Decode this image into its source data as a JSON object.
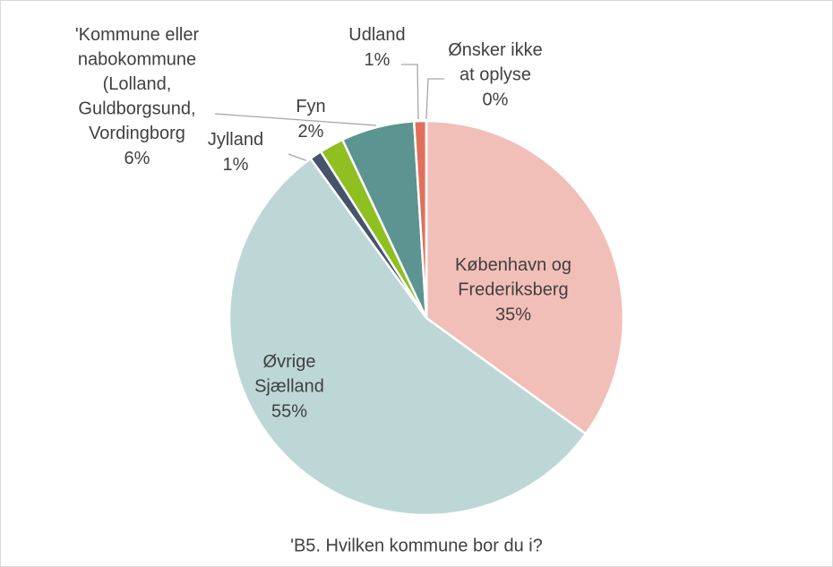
{
  "chart_data": {
    "type": "pie",
    "title": "'B5. Hvilken kommune bor du i?",
    "categories": [
      "København og\nFrederiksberg",
      "Øvrige\nSjælland",
      "Jylland",
      "Fyn",
      "'Kommune eller\nnabokommune\n(Lolland,\nGuldborgsund,\nVordingborg",
      "Udland",
      "Ønsker ikke\nat oplyse"
    ],
    "values": [
      35,
      55,
      1,
      2,
      6,
      1,
      0
    ],
    "value_labels": [
      "35%",
      "55%",
      "1%",
      "2%",
      "6%",
      "1%",
      "0%"
    ],
    "colors": [
      "#f2bfb8",
      "#bdd7d6",
      "#44546a",
      "#8fbf21",
      "#5b9491",
      "#e0705c",
      "#d9b8b8"
    ]
  }
}
